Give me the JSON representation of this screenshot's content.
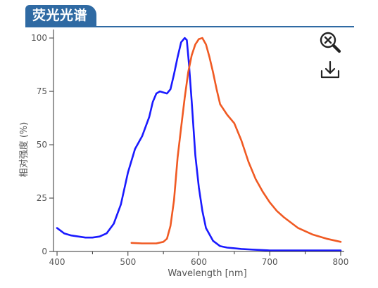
{
  "header": {
    "title": "荧光光谱",
    "color": "#2f6aa3"
  },
  "toolbar": {
    "zoom_icon": "zoom-reset-icon",
    "download_icon": "download-icon"
  },
  "chart_data": {
    "type": "line",
    "xlabel": "Wavelength [nm]",
    "ylabel": "相对强度 (%)",
    "xlim": [
      395,
      805
    ],
    "ylim": [
      0,
      102
    ],
    "x_ticks": [
      400,
      500,
      600,
      700,
      800
    ],
    "y_ticks": [
      0,
      25,
      50,
      75,
      100
    ],
    "grid": false,
    "series": [
      {
        "color": "#1a1aff",
        "x": [
          400,
          410,
          420,
          430,
          440,
          450,
          460,
          470,
          480,
          490,
          500,
          510,
          520,
          530,
          535,
          540,
          545,
          550,
          555,
          560,
          565,
          570,
          575,
          580,
          583,
          586,
          590,
          595,
          600,
          605,
          610,
          620,
          630,
          640,
          650,
          660,
          670,
          680,
          700,
          720,
          740,
          760,
          780,
          800
        ],
        "y": [
          11,
          8.5,
          7.5,
          7,
          6.5,
          6.5,
          7,
          8.5,
          13,
          22,
          37,
          48,
          54,
          63,
          70,
          74,
          75,
          74.5,
          74,
          76,
          83,
          91,
          98,
          100,
          99,
          88,
          70,
          45,
          30,
          19,
          11,
          5,
          2.5,
          1.8,
          1.5,
          1.2,
          1,
          0.8,
          0.5,
          0.5,
          0.5,
          0.5,
          0.5,
          0.5
        ]
      },
      {
        "color": "#f05a23",
        "x": [
          505,
          520,
          540,
          550,
          555,
          560,
          565,
          570,
          575,
          580,
          585,
          590,
          595,
          600,
          605,
          610,
          615,
          620,
          625,
          630,
          640,
          650,
          660,
          670,
          680,
          690,
          700,
          710,
          720,
          740,
          760,
          780,
          800
        ],
        "y": [
          4,
          3.8,
          3.8,
          4.5,
          6,
          12,
          24,
          44,
          58,
          72,
          84,
          92,
          97,
          99.5,
          100,
          97,
          91,
          84,
          76,
          69,
          64,
          60,
          52,
          42,
          34,
          28,
          23,
          19,
          16,
          11,
          8,
          6,
          4.5
        ]
      }
    ]
  }
}
